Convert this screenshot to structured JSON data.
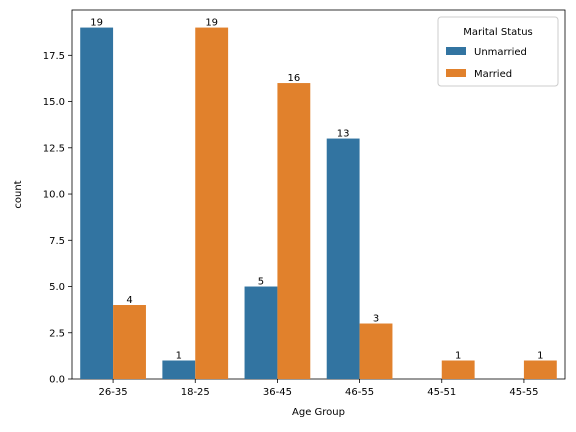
{
  "chart_data": {
    "type": "bar",
    "xlabel": "Age Group",
    "ylabel": "count",
    "categories": [
      "26-35",
      "18-25",
      "36-45",
      "46-55",
      "45-51",
      "45-55"
    ],
    "ylim": [
      0,
      19.95
    ],
    "yticks": [
      "0.0",
      "2.5",
      "5.0",
      "7.5",
      "10.0",
      "12.5",
      "15.0",
      "17.5"
    ],
    "ytick_values": [
      0,
      2.5,
      5,
      7.5,
      10,
      12.5,
      15,
      17.5
    ],
    "series": [
      {
        "name": "Unmarried",
        "color": "#3274a1",
        "values": [
          19,
          1,
          5,
          13,
          null,
          null
        ]
      },
      {
        "name": "Married",
        "color": "#e1812c",
        "values": [
          4,
          19,
          16,
          3,
          1,
          1
        ]
      }
    ],
    "legend": {
      "title": "Marital Status",
      "placement": "top-right"
    },
    "grid": false
  }
}
